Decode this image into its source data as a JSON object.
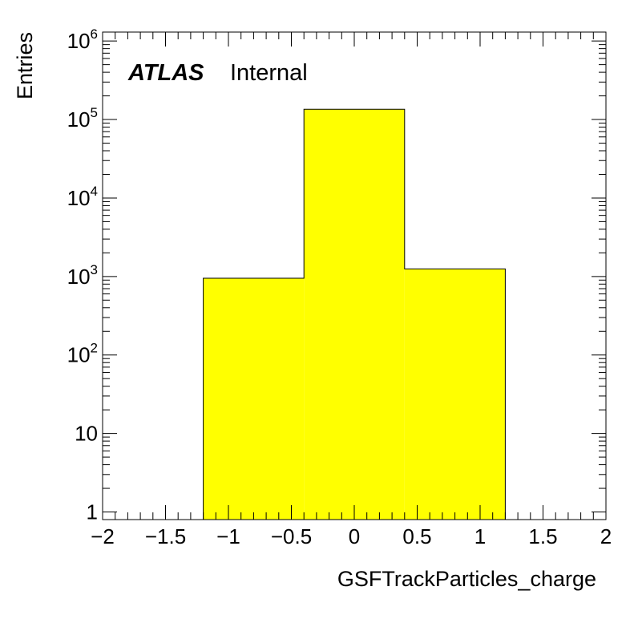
{
  "chart_data": {
    "type": "histogram",
    "xlabel": "GSFTrackParticles_charge",
    "ylabel": "Entries",
    "xlim": [
      -2,
      2
    ],
    "ylim": [
      0.8,
      1300000
    ],
    "y_scale": "log",
    "x_tick_labels": [
      "−2",
      "−1.5",
      "−1",
      "−0.5",
      "0",
      "0.5",
      "1",
      "1.5",
      "2"
    ],
    "x_ticks": [
      -2,
      -1.5,
      -1,
      -0.5,
      0,
      0.5,
      1,
      1.5,
      2
    ],
    "y_ticks": [
      {
        "value": 1,
        "base": "1",
        "exp": ""
      },
      {
        "value": 10,
        "base": "10",
        "exp": ""
      },
      {
        "value": 100,
        "base": "10",
        "exp": "2"
      },
      {
        "value": 1000,
        "base": "10",
        "exp": "3"
      },
      {
        "value": 10000,
        "base": "10",
        "exp": "4"
      },
      {
        "value": 100000,
        "base": "10",
        "exp": "5"
      },
      {
        "value": 1000000,
        "base": "10",
        "exp": "6"
      }
    ],
    "bins": [
      {
        "low": -1.2,
        "high": -0.4,
        "value": 950
      },
      {
        "low": -0.4,
        "high": 0.4,
        "value": 135000
      },
      {
        "low": 0.4,
        "high": 1.2,
        "value": 1250
      }
    ],
    "fill_color": "#ffff00",
    "line_color": "#000000",
    "grid": false,
    "legend": "none",
    "annotation": {
      "experiment": "ATLAS",
      "status": "Internal",
      "placement": "top-left"
    }
  }
}
